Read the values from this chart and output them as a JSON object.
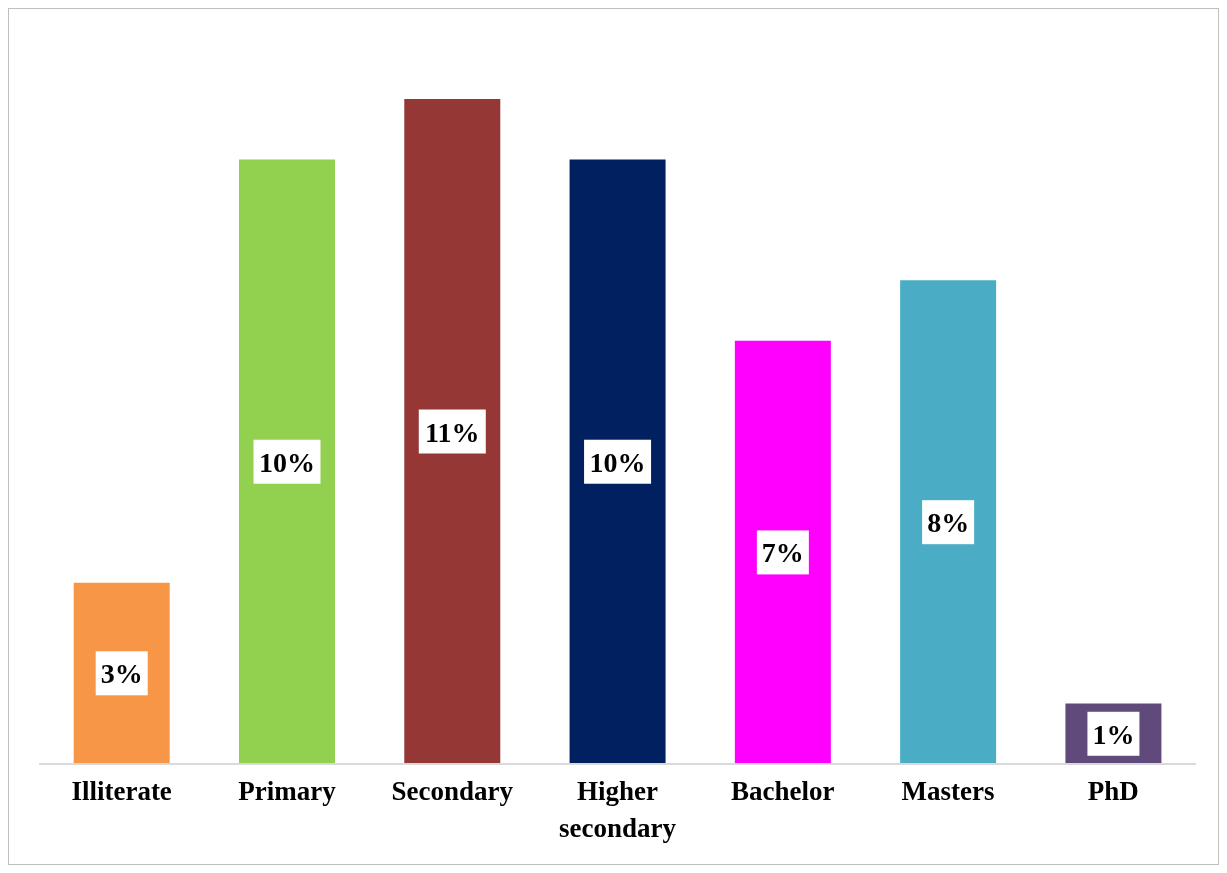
{
  "chart_data": {
    "type": "bar",
    "categories": [
      "Illiterate",
      "Primary",
      "Secondary",
      "Higher secondary",
      "Bachelor",
      "Masters",
      "PhD"
    ],
    "values": [
      3,
      10,
      11,
      10,
      7,
      8,
      1
    ],
    "colors": [
      "#f79646",
      "#92d050",
      "#953735",
      "#002060",
      "#ff00ff",
      "#4bacc6",
      "#604a7b"
    ],
    "value_labels": [
      "3%",
      "10%",
      "11%",
      "10%",
      "7%",
      "8%",
      "1%"
    ],
    "grid": false,
    "legend": false
  }
}
